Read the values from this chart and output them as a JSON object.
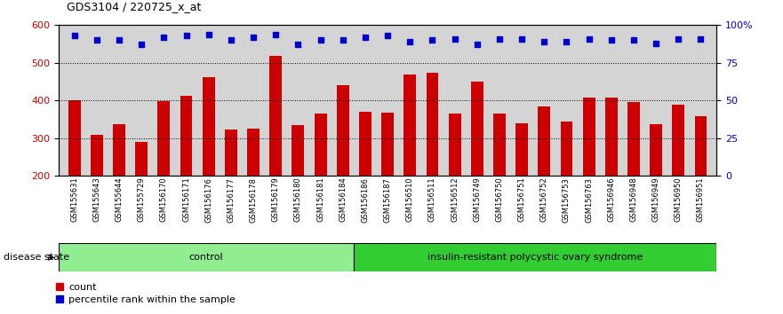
{
  "title": "GDS3104 / 220725_x_at",
  "samples": [
    "GSM155631",
    "GSM155643",
    "GSM155644",
    "GSM155729",
    "GSM156170",
    "GSM156171",
    "GSM156176",
    "GSM156177",
    "GSM156178",
    "GSM156179",
    "GSM156180",
    "GSM156181",
    "GSM156184",
    "GSM156186",
    "GSM156187",
    "GSM156510",
    "GSM156511",
    "GSM156512",
    "GSM156749",
    "GSM156750",
    "GSM156751",
    "GSM156752",
    "GSM156753",
    "GSM156763",
    "GSM156946",
    "GSM156948",
    "GSM156949",
    "GSM156950",
    "GSM156951"
  ],
  "counts": [
    400,
    310,
    338,
    290,
    398,
    412,
    463,
    322,
    325,
    519,
    335,
    365,
    440,
    370,
    368,
    468,
    474,
    365,
    450,
    365,
    340,
    385,
    345,
    407,
    408,
    395,
    338,
    390,
    358
  ],
  "percentile_pct": [
    93,
    90,
    90,
    87,
    92,
    93,
    94,
    90,
    92,
    94,
    87,
    90,
    90,
    92,
    93,
    89,
    90,
    91,
    87,
    91,
    91,
    89,
    89,
    91,
    90,
    90,
    88,
    91,
    91
  ],
  "control_count": 13,
  "disease_count": 16,
  "ylim_left": [
    200,
    600
  ],
  "ylim_right": [
    0,
    100
  ],
  "yticks_left": [
    200,
    300,
    400,
    500,
    600
  ],
  "yticks_right": [
    0,
    25,
    50,
    75,
    100
  ],
  "ytick_labels_right": [
    "0",
    "25",
    "50",
    "75",
    "100%"
  ],
  "bar_color": "#CC0000",
  "dot_color": "#0000CC",
  "control_color": "#90EE90",
  "disease_color": "#32CD32",
  "plot_bg_color": "#D4D4D4",
  "label_count": "count",
  "label_pct": "percentile rank within the sample",
  "disease_state_label": "disease state",
  "control_label": "control",
  "disease_label": "insulin-resistant polycystic ovary syndrome"
}
